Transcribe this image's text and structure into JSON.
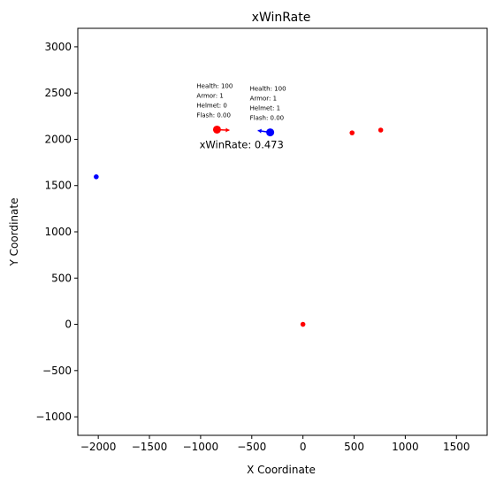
{
  "chart_data": {
    "type": "scatter",
    "title": "xWinRate",
    "xlabel": "X Coordinate",
    "ylabel": "Y Coordinate",
    "xlim": [
      -2200,
      1800
    ],
    "ylim": [
      -1200,
      3200
    ],
    "xticks": [
      -2000,
      -1500,
      -1000,
      -500,
      0,
      500,
      1000,
      1500
    ],
    "yticks": [
      -1000,
      -500,
      0,
      500,
      1000,
      1500,
      2000,
      2500,
      3000
    ],
    "grid": false,
    "colors": {
      "red": "#ff0000",
      "blue": "#0000ff"
    },
    "points": [
      {
        "x": -2020,
        "y": 1595,
        "color": "blue",
        "highlight": false
      },
      {
        "x": 0,
        "y": 0,
        "color": "red",
        "highlight": false
      },
      {
        "x": 480,
        "y": 2070,
        "color": "red",
        "highlight": false
      },
      {
        "x": 760,
        "y": 2100,
        "color": "red",
        "highlight": false
      },
      {
        "x": -840,
        "y": 2105,
        "color": "red",
        "highlight": true,
        "direction": [
          1,
          -0.05
        ],
        "info": [
          "Health: 100",
          "Armor: 1",
          "Helmet: 0",
          "Flash: 0.00"
        ]
      },
      {
        "x": -320,
        "y": 2075,
        "color": "blue",
        "highlight": true,
        "direction": [
          -1,
          0.15
        ],
        "info": [
          "Health: 100",
          "Armor: 1",
          "Helmet: 1",
          "Flash: 0.00"
        ]
      }
    ],
    "annotation": {
      "text": "xWinRate: 0.473",
      "x": -600,
      "y": 1940
    }
  }
}
